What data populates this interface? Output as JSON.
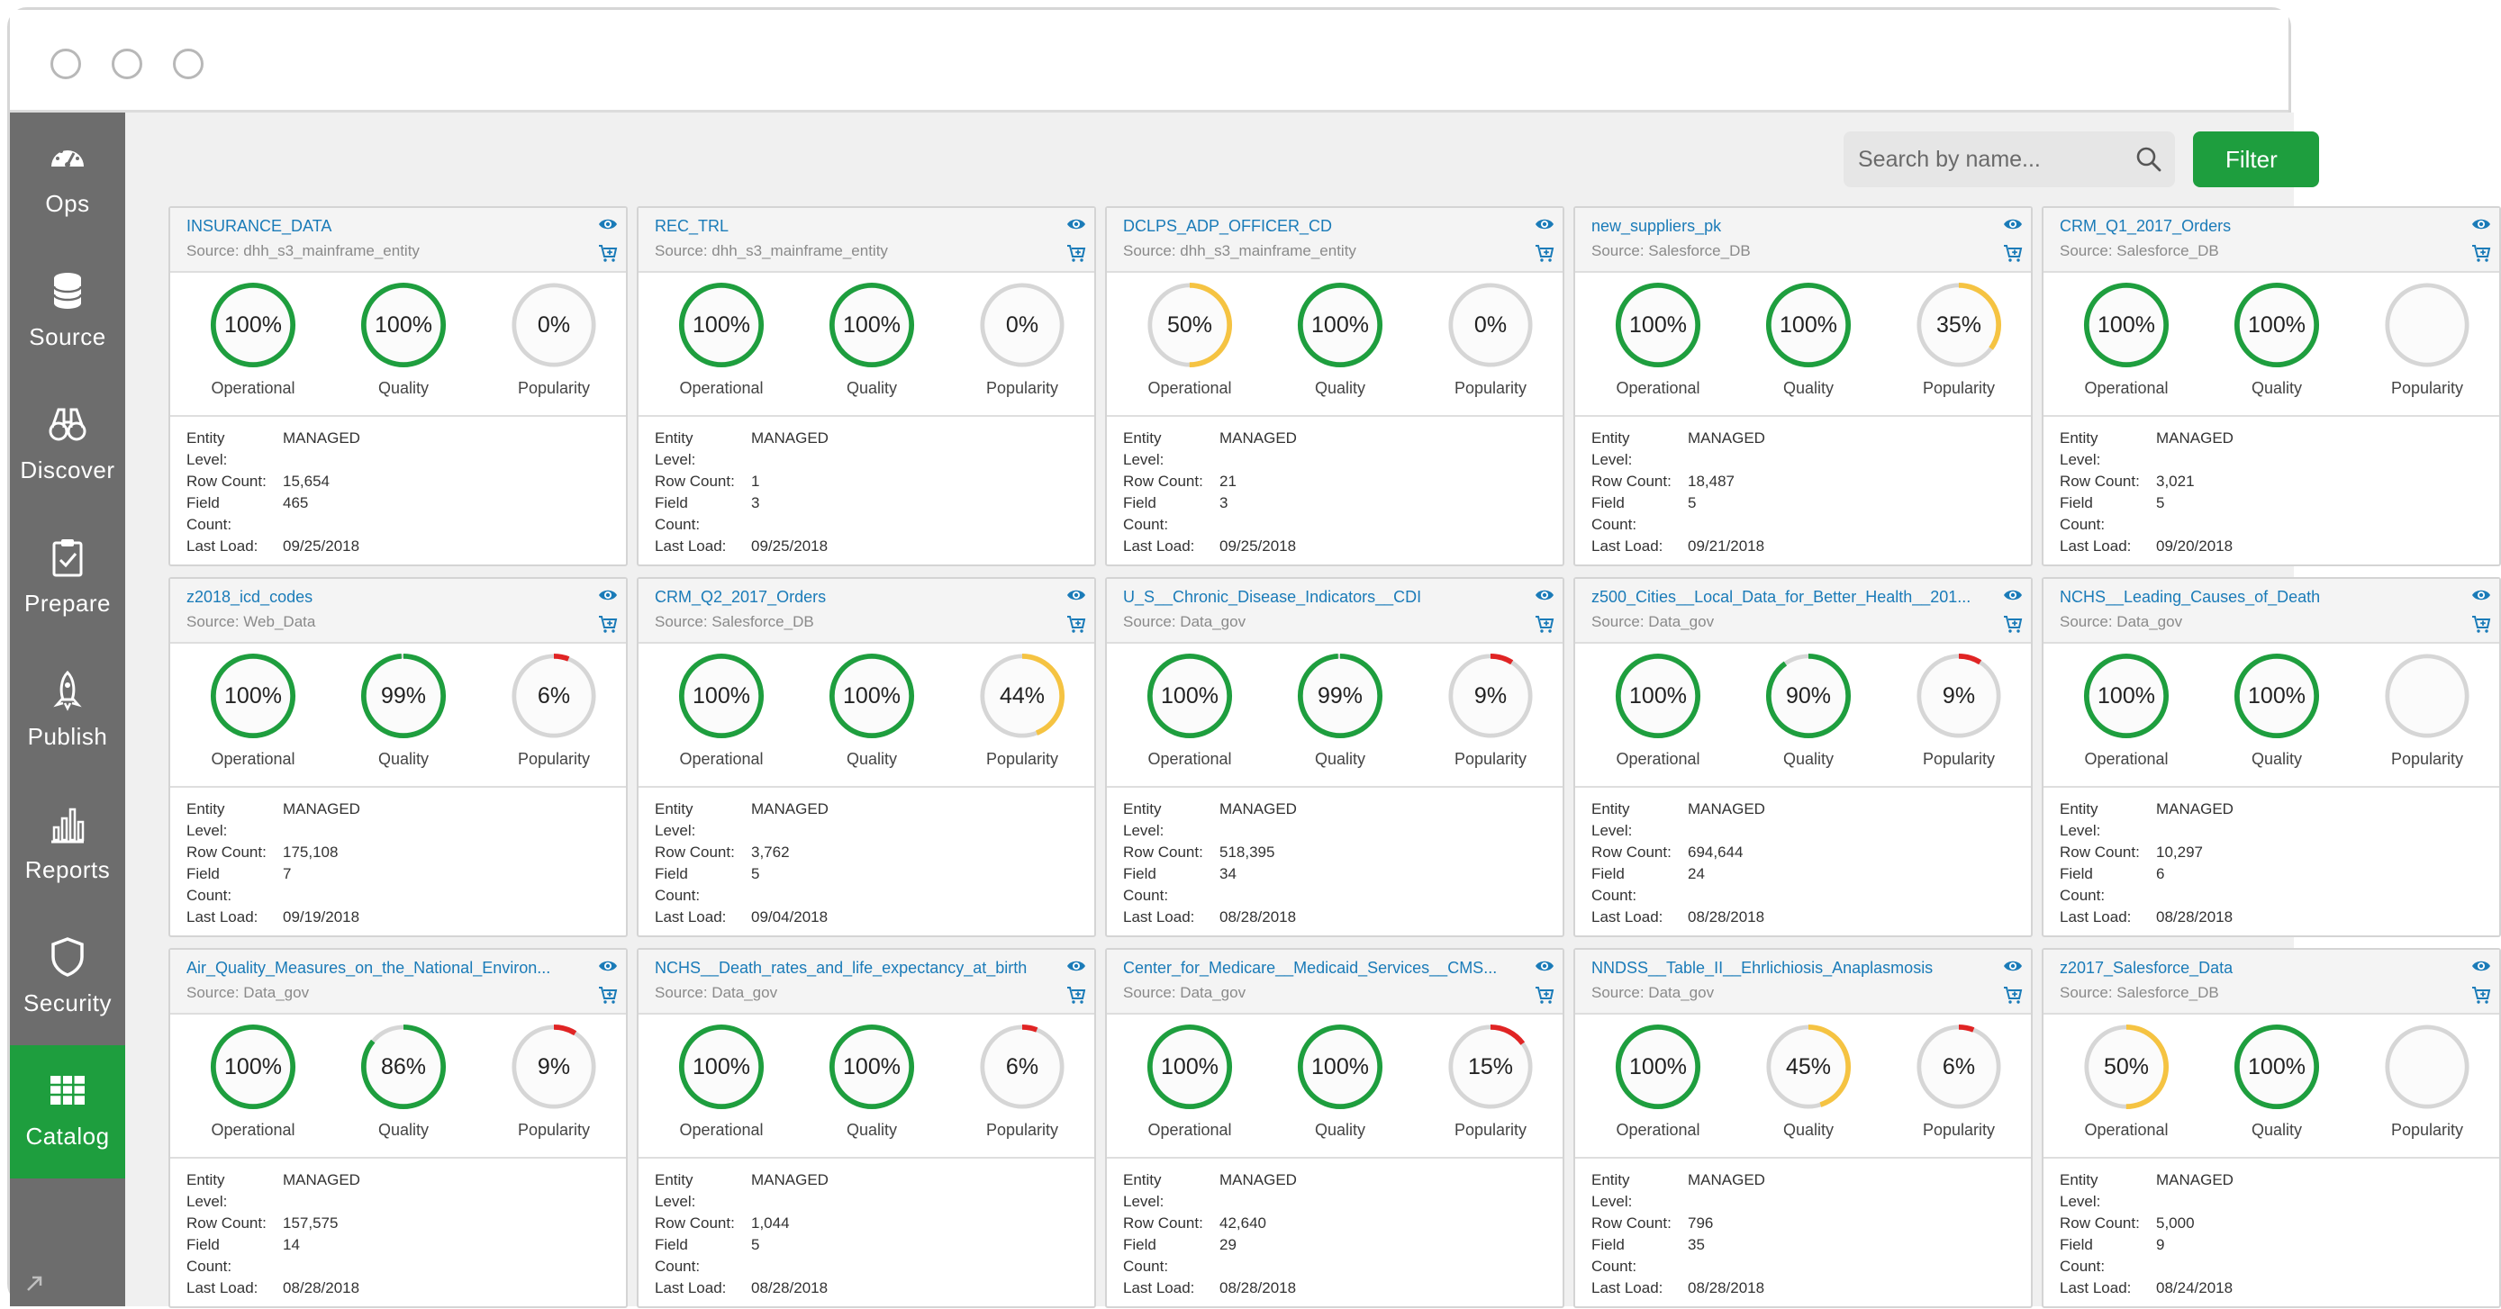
{
  "sidebar": {
    "items": [
      {
        "label": "Ops",
        "icon": "gauge-icon"
      },
      {
        "label": "Source",
        "icon": "database-icon"
      },
      {
        "label": "Discover",
        "icon": "binoculars-icon"
      },
      {
        "label": "Prepare",
        "icon": "clipboard-check-icon"
      },
      {
        "label": "Publish",
        "icon": "rocket-icon"
      },
      {
        "label": "Reports",
        "icon": "bar-chart-icon"
      },
      {
        "label": "Security",
        "icon": "shield-icon"
      },
      {
        "label": "Catalog",
        "icon": "grid-icon",
        "active": true
      }
    ]
  },
  "search": {
    "placeholder": "Search by name..."
  },
  "filter": {
    "label": "Filter"
  },
  "colors": {
    "green": "#1e9e3e",
    "yellow": "#f5c342",
    "red": "#e02424",
    "track": "#d6d6d6",
    "link": "#1a7bb8"
  },
  "labels": {
    "operational": "Operational",
    "quality": "Quality",
    "popularity": "Popularity",
    "entity_level_1": "Entity",
    "entity_level_2": "Level:",
    "row_count": "Row Count:",
    "field_count_1": "Field",
    "field_count_2": "Count:",
    "last_load": "Last Load:"
  },
  "cards": [
    {
      "title": "INSURANCE_DATA",
      "source": "Source: dhh_s3_mainframe_entity",
      "operational": 100,
      "quality": 100,
      "popularity": 0,
      "entity_level": "MANAGED",
      "row_count": "15,654",
      "field_count": "465",
      "last_load": "09/25/2018"
    },
    {
      "title": "REC_TRL",
      "source": "Source: dhh_s3_mainframe_entity",
      "operational": 100,
      "quality": 100,
      "popularity": 0,
      "entity_level": "MANAGED",
      "row_count": "1",
      "field_count": "3",
      "last_load": "09/25/2018"
    },
    {
      "title": "DCLPS_ADP_OFFICER_CD",
      "source": "Source: dhh_s3_mainframe_entity",
      "operational": 50,
      "quality": 100,
      "popularity": 0,
      "entity_level": "MANAGED",
      "row_count": "21",
      "field_count": "3",
      "last_load": "09/25/2018"
    },
    {
      "title": "new_suppliers_pk",
      "source": "Source: Salesforce_DB",
      "operational": 100,
      "quality": 100,
      "popularity": 35,
      "entity_level": "MANAGED",
      "row_count": "18,487",
      "field_count": "5",
      "last_load": "09/21/2018"
    },
    {
      "title": "CRM_Q1_2017_Orders",
      "source": "Source: Salesforce_DB",
      "operational": 100,
      "quality": 100,
      "popularity": null,
      "entity_level": "MANAGED",
      "row_count": "3,021",
      "field_count": "5",
      "last_load": "09/20/2018"
    },
    {
      "title": "z2018_icd_codes",
      "source": "Source: Web_Data",
      "operational": 100,
      "quality": 99,
      "popularity": 6,
      "entity_level": "MANAGED",
      "row_count": "175,108",
      "field_count": "7",
      "last_load": "09/19/2018"
    },
    {
      "title": "CRM_Q2_2017_Orders",
      "source": "Source: Salesforce_DB",
      "operational": 100,
      "quality": 100,
      "popularity": 44,
      "entity_level": "MANAGED",
      "row_count": "3,762",
      "field_count": "5",
      "last_load": "09/04/2018"
    },
    {
      "title": "U_S__Chronic_Disease_Indicators__CDI",
      "source": "Source: Data_gov",
      "operational": 100,
      "quality": 99,
      "popularity": 9,
      "entity_level": "MANAGED",
      "row_count": "518,395",
      "field_count": "34",
      "last_load": "08/28/2018"
    },
    {
      "title": "z500_Cities__Local_Data_for_Better_Health__201...",
      "source": "Source: Data_gov",
      "operational": 100,
      "quality": 90,
      "popularity": 9,
      "entity_level": "MANAGED",
      "row_count": "694,644",
      "field_count": "24",
      "last_load": "08/28/2018"
    },
    {
      "title": "NCHS__Leading_Causes_of_Death",
      "source": "Source: Data_gov",
      "operational": 100,
      "quality": 100,
      "popularity": null,
      "entity_level": "MANAGED",
      "row_count": "10,297",
      "field_count": "6",
      "last_load": "08/28/2018"
    },
    {
      "title": "Air_Quality_Measures_on_the_National_Environ...",
      "source": "Source: Data_gov",
      "operational": 100,
      "quality": 86,
      "popularity": 9,
      "entity_level": "MANAGED",
      "row_count": "157,575",
      "field_count": "14",
      "last_load": "08/28/2018"
    },
    {
      "title": "NCHS__Death_rates_and_life_expectancy_at_birth",
      "source": "Source: Data_gov",
      "operational": 100,
      "quality": 100,
      "popularity": 6,
      "entity_level": "MANAGED",
      "row_count": "1,044",
      "field_count": "5",
      "last_load": "08/28/2018"
    },
    {
      "title": "Center_for_Medicare__Medicaid_Services__CMS...",
      "source": "Source: Data_gov",
      "operational": 100,
      "quality": 100,
      "popularity": 15,
      "entity_level": "MANAGED",
      "row_count": "42,640",
      "field_count": "29",
      "last_load": "08/28/2018"
    },
    {
      "title": "NNDSS__Table_II__Ehrlichiosis_Anaplasmosis",
      "source": "Source: Data_gov",
      "operational": 100,
      "quality": 45,
      "popularity": 6,
      "entity_level": "MANAGED",
      "row_count": "796",
      "field_count": "35",
      "last_load": "08/28/2018"
    },
    {
      "title": "z2017_Salesforce_Data",
      "source": "Source: Salesforce_DB",
      "operational": 50,
      "quality": 100,
      "popularity": null,
      "entity_level": "MANAGED",
      "row_count": "5,000",
      "field_count": "9",
      "last_load": "08/24/2018"
    }
  ]
}
